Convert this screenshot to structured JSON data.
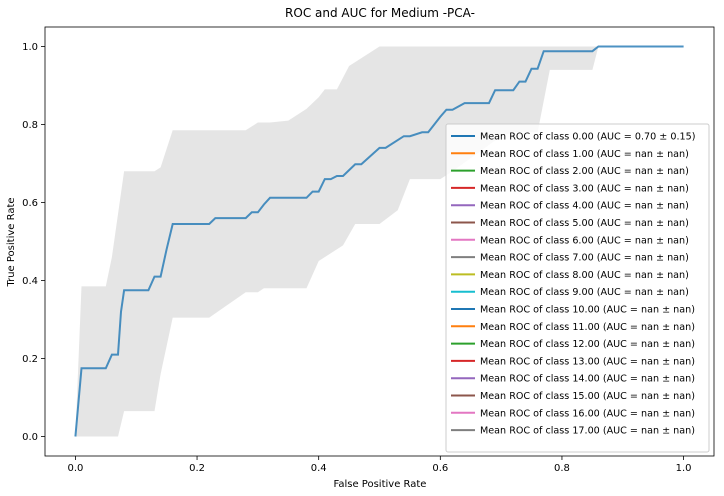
{
  "chart_data": {
    "type": "line",
    "title": "ROC and AUC for Medium -PCA-",
    "xlabel": "False Positive Rate",
    "ylabel": "True Positive Rate",
    "xlim": [
      -0.05,
      1.05
    ],
    "ylim": [
      -0.05,
      1.05
    ],
    "xticks": [
      0.0,
      0.2,
      0.4,
      0.6,
      0.8,
      1.0
    ],
    "xtick_labels": [
      "0.0",
      "0.2",
      "0.4",
      "0.6",
      "0.8",
      "1.0"
    ],
    "yticks": [
      0.0,
      0.2,
      0.4,
      0.6,
      0.8,
      1.0
    ],
    "ytick_labels": [
      "0.0",
      "0.2",
      "0.4",
      "0.6",
      "0.8",
      "1.0"
    ],
    "grid": false,
    "legend_position": "lower-right",
    "mean_roc": {
      "color": "#1f77b4",
      "x": [
        0.0,
        0.01,
        0.05,
        0.06,
        0.07,
        0.075,
        0.08,
        0.12,
        0.13,
        0.14,
        0.15,
        0.16,
        0.2,
        0.22,
        0.23,
        0.28,
        0.29,
        0.3,
        0.31,
        0.32,
        0.38,
        0.39,
        0.4,
        0.41,
        0.42,
        0.43,
        0.44,
        0.46,
        0.47,
        0.5,
        0.51,
        0.54,
        0.55,
        0.57,
        0.58,
        0.6,
        0.61,
        0.62,
        0.64,
        0.65,
        0.68,
        0.69,
        0.72,
        0.73,
        0.74,
        0.75,
        0.76,
        0.77,
        0.78,
        0.85,
        0.86,
        1.0
      ],
      "y": [
        0.0,
        0.175,
        0.175,
        0.21,
        0.21,
        0.32,
        0.375,
        0.375,
        0.41,
        0.41,
        0.48,
        0.545,
        0.545,
        0.545,
        0.56,
        0.56,
        0.575,
        0.575,
        0.595,
        0.612,
        0.612,
        0.628,
        0.628,
        0.66,
        0.66,
        0.668,
        0.668,
        0.698,
        0.698,
        0.74,
        0.74,
        0.77,
        0.77,
        0.78,
        0.78,
        0.82,
        0.838,
        0.838,
        0.855,
        0.855,
        0.855,
        0.888,
        0.888,
        0.91,
        0.91,
        0.943,
        0.943,
        0.988,
        0.988,
        0.988,
        1.0,
        1.0
      ]
    },
    "band": {
      "color": "#cccccc",
      "upper_x": [
        0.0,
        0.01,
        0.05,
        0.06,
        0.08,
        0.13,
        0.14,
        0.16,
        0.2,
        0.23,
        0.28,
        0.3,
        0.32,
        0.35,
        0.38,
        0.4,
        0.41,
        0.43,
        0.45,
        0.5,
        0.55,
        0.6,
        0.62,
        0.65,
        0.68,
        0.72,
        0.76,
        0.78,
        1.0
      ],
      "upper_y": [
        0.0,
        0.385,
        0.385,
        0.46,
        0.68,
        0.68,
        0.69,
        0.785,
        0.785,
        0.785,
        0.785,
        0.805,
        0.805,
        0.81,
        0.84,
        0.87,
        0.89,
        0.89,
        0.95,
        1.0,
        1.0,
        1.0,
        1.0,
        1.0,
        1.0,
        1.0,
        1.0,
        1.0,
        1.0
      ],
      "lower_x": [
        0.0,
        0.07,
        0.08,
        0.13,
        0.14,
        0.16,
        0.2,
        0.22,
        0.28,
        0.3,
        0.31,
        0.32,
        0.38,
        0.4,
        0.44,
        0.46,
        0.47,
        0.5,
        0.53,
        0.55,
        0.58,
        0.6,
        0.62,
        0.7,
        0.72,
        0.76,
        0.78,
        0.85,
        0.86,
        1.0
      ],
      "lower_y": [
        0.0,
        0.0,
        0.065,
        0.065,
        0.16,
        0.305,
        0.305,
        0.305,
        0.37,
        0.37,
        0.38,
        0.38,
        0.38,
        0.45,
        0.49,
        0.545,
        0.545,
        0.545,
        0.58,
        0.66,
        0.66,
        0.66,
        0.68,
        0.77,
        0.78,
        0.78,
        0.94,
        0.94,
        1.0,
        1.0
      ]
    },
    "legend": [
      {
        "label": "Mean ROC of class 0.00 (AUC = 0.70 ± 0.15)",
        "color": "#1f77b4"
      },
      {
        "label": "Mean ROC of class 1.00 (AUC = nan ± nan)",
        "color": "#ff7f0e"
      },
      {
        "label": "Mean ROC of class 2.00 (AUC = nan ± nan)",
        "color": "#2ca02c"
      },
      {
        "label": "Mean ROC of class 3.00 (AUC = nan ± nan)",
        "color": "#d62728"
      },
      {
        "label": "Mean ROC of class 4.00 (AUC = nan ± nan)",
        "color": "#9467bd"
      },
      {
        "label": "Mean ROC of class 5.00 (AUC = nan ± nan)",
        "color": "#8c564b"
      },
      {
        "label": "Mean ROC of class 6.00 (AUC = nan ± nan)",
        "color": "#e377c2"
      },
      {
        "label": "Mean ROC of class 7.00 (AUC = nan ± nan)",
        "color": "#7f7f7f"
      },
      {
        "label": "Mean ROC of class 8.00 (AUC = nan ± nan)",
        "color": "#bcbd22"
      },
      {
        "label": "Mean ROC of class 9.00 (AUC = nan ± nan)",
        "color": "#17becf"
      },
      {
        "label": "Mean ROC of class 10.00 (AUC = nan ± nan)",
        "color": "#1f77b4"
      },
      {
        "label": "Mean ROC of class 11.00 (AUC = nan ± nan)",
        "color": "#ff7f0e"
      },
      {
        "label": "Mean ROC of class 12.00 (AUC = nan ± nan)",
        "color": "#2ca02c"
      },
      {
        "label": "Mean ROC of class 13.00 (AUC = nan ± nan)",
        "color": "#d62728"
      },
      {
        "label": "Mean ROC of class 14.00 (AUC = nan ± nan)",
        "color": "#9467bd"
      },
      {
        "label": "Mean ROC of class 15.00 (AUC = nan ± nan)",
        "color": "#8c564b"
      },
      {
        "label": "Mean ROC of class 16.00 (AUC = nan ± nan)",
        "color": "#e377c2"
      },
      {
        "label": "Mean ROC of class 17.00 (AUC = nan ± nan)",
        "color": "#7f7f7f"
      }
    ]
  }
}
